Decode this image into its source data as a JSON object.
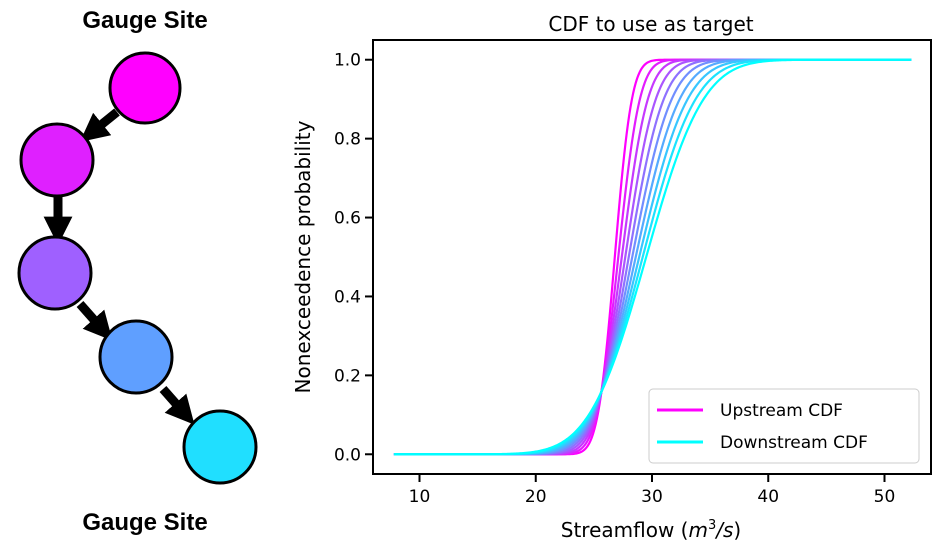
{
  "diagram": {
    "top_label": "Gauge Site",
    "bottom_label": "Gauge Site",
    "nodes": [
      {
        "color": "#ff00ff"
      },
      {
        "color": "#df20ff"
      },
      {
        "color": "#9f60ff"
      },
      {
        "color": "#5f9fff"
      },
      {
        "color": "#20dfff"
      }
    ]
  },
  "chart_data": {
    "type": "line",
    "title": "CDF to use as target",
    "xlabel": "Streamflow",
    "xlabel_unit_base": "m",
    "xlabel_unit_exp": "3",
    "xlabel_unit_tail": "/s",
    "ylabel": "Nonexceedence probability",
    "xlim": [
      6,
      54
    ],
    "ylim": [
      -0.05,
      1.05
    ],
    "xticks": [
      10,
      20,
      30,
      40,
      50
    ],
    "yticks": [
      0.0,
      0.2,
      0.4,
      0.6,
      0.8,
      1.0
    ],
    "ytick_labels": [
      "0.0",
      "0.2",
      "0.4",
      "0.6",
      "0.8",
      "1.0"
    ],
    "x_range": [
      7.8,
      52.3
    ],
    "grid": false,
    "legend": {
      "position": "lower-right",
      "entries": [
        {
          "label": "Upstream CDF",
          "color": "#ff00ff"
        },
        {
          "label": "Downstream CDF",
          "color": "#00ffff"
        }
      ]
    },
    "series": [
      {
        "mean": 26.8,
        "std": 1.15,
        "color": "#ff00ff"
      },
      {
        "mean": 27.1,
        "std": 1.45,
        "color": "#e31cff"
      },
      {
        "mean": 27.4,
        "std": 1.75,
        "color": "#c638ff"
      },
      {
        "mean": 27.7,
        "std": 2.05,
        "color": "#aa55ff"
      },
      {
        "mean": 28.0,
        "std": 2.35,
        "color": "#8e71ff"
      },
      {
        "mean": 28.3,
        "std": 2.65,
        "color": "#718eff"
      },
      {
        "mean": 28.6,
        "std": 2.95,
        "color": "#55aaff"
      },
      {
        "mean": 28.9,
        "std": 3.25,
        "color": "#38c6ff"
      },
      {
        "mean": 29.2,
        "std": 3.55,
        "color": "#1ce3ff"
      },
      {
        "mean": 29.5,
        "std": 3.85,
        "color": "#00ffff"
      }
    ]
  }
}
